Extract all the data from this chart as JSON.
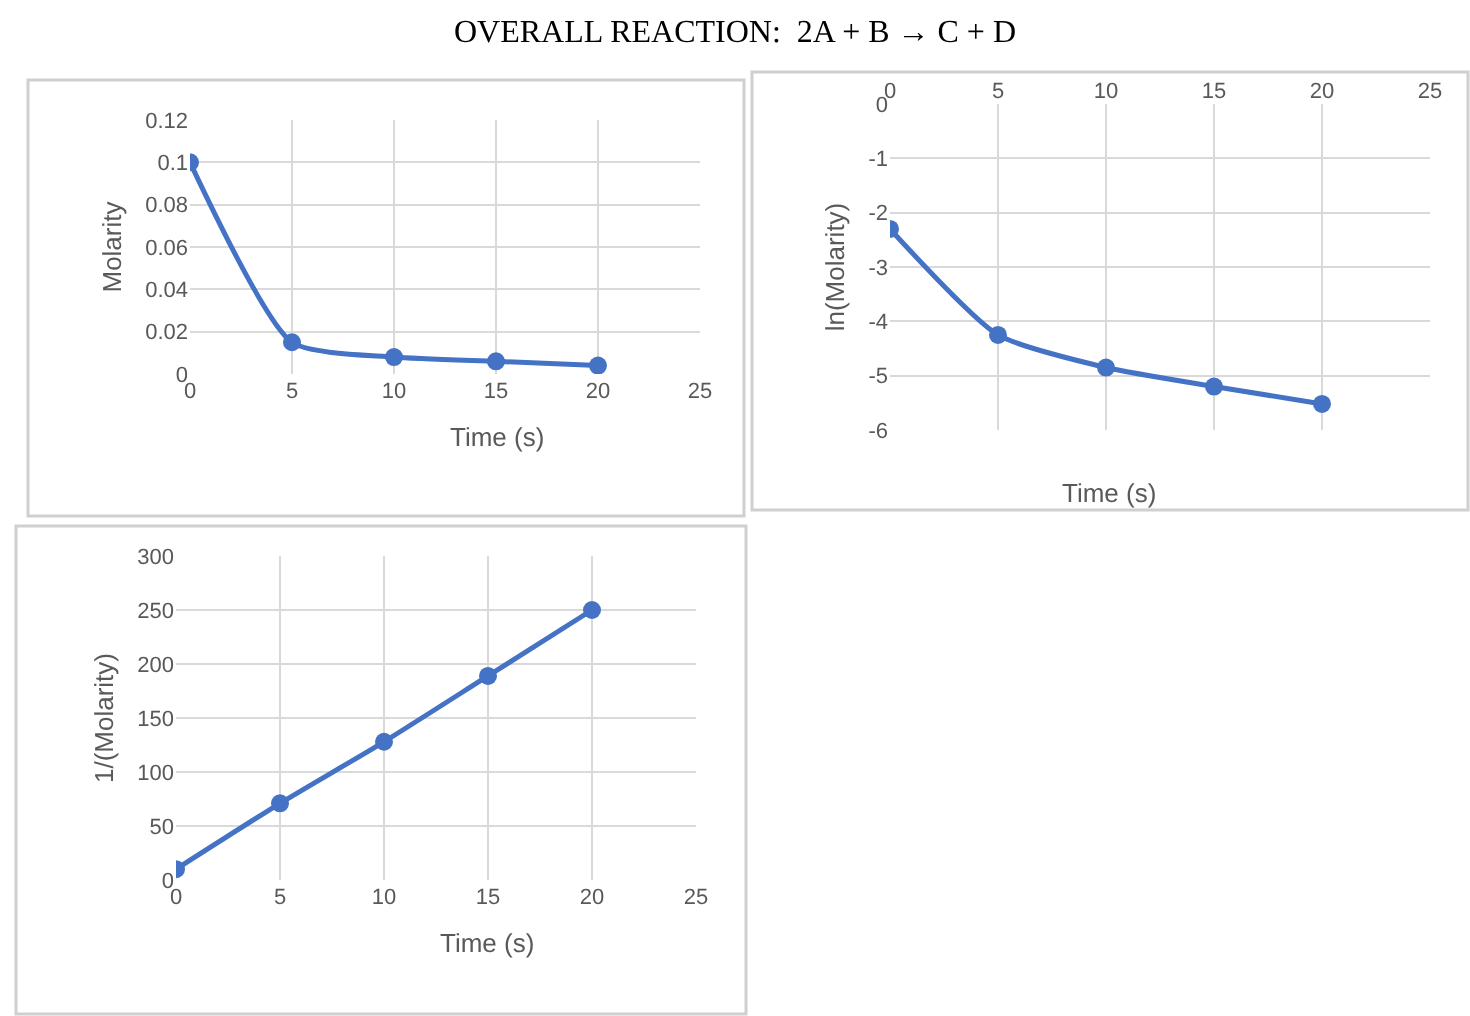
{
  "chart_data": [
    {
      "type": "line",
      "title": "OVERALL REACTION:  2A + B → C + D",
      "xlabel": "Time (s)",
      "ylabel": "Molarity",
      "x": [
        0,
        5,
        10,
        15,
        20
      ],
      "series": [
        {
          "color": "#4472c4",
          "values": [
            0.1,
            0.015,
            0.008,
            0.006,
            0.004
          ]
        }
      ],
      "xlim": [
        0,
        25
      ],
      "xticks": [
        0,
        5,
        10,
        15,
        20,
        25
      ],
      "ylim": [
        0,
        0.12
      ],
      "yticks": [
        0,
        0.02,
        0.04,
        0.06,
        0.08,
        0.1,
        0.12
      ],
      "grid": true,
      "marker": "circle",
      "line_style": "solid"
    },
    {
      "type": "line",
      "xlabel": "Time (s)",
      "ylabel": "ln(Molarity)",
      "x": [
        0,
        5,
        10,
        15,
        20
      ],
      "series": [
        {
          "color": "#4472c4",
          "values": [
            -2.3,
            -4.25,
            -4.85,
            -5.2,
            -5.52
          ]
        }
      ],
      "xlim": [
        0,
        25
      ],
      "xticks": [
        0,
        5,
        10,
        15,
        20,
        25
      ],
      "ylim": [
        -6,
        0
      ],
      "yticks": [
        -6,
        -5,
        -4,
        -3,
        -2,
        -1,
        0
      ],
      "grid": true,
      "marker": "circle",
      "line_style": "solid"
    },
    {
      "type": "line",
      "xlabel": "Time (s)",
      "ylabel": "1/(Molarity)",
      "x": [
        0,
        5,
        10,
        15,
        20
      ],
      "series": [
        {
          "color": "#4472c4",
          "values": [
            10,
            71,
            128,
            189,
            250
          ]
        }
      ],
      "xlim": [
        0,
        25
      ],
      "xticks": [
        0,
        5,
        10,
        15,
        20,
        25
      ],
      "ylim": [
        0,
        300
      ],
      "yticks": [
        0,
        50,
        100,
        150,
        200,
        250,
        300
      ],
      "grid": true,
      "marker": "circle",
      "line_style": "solid"
    }
  ]
}
